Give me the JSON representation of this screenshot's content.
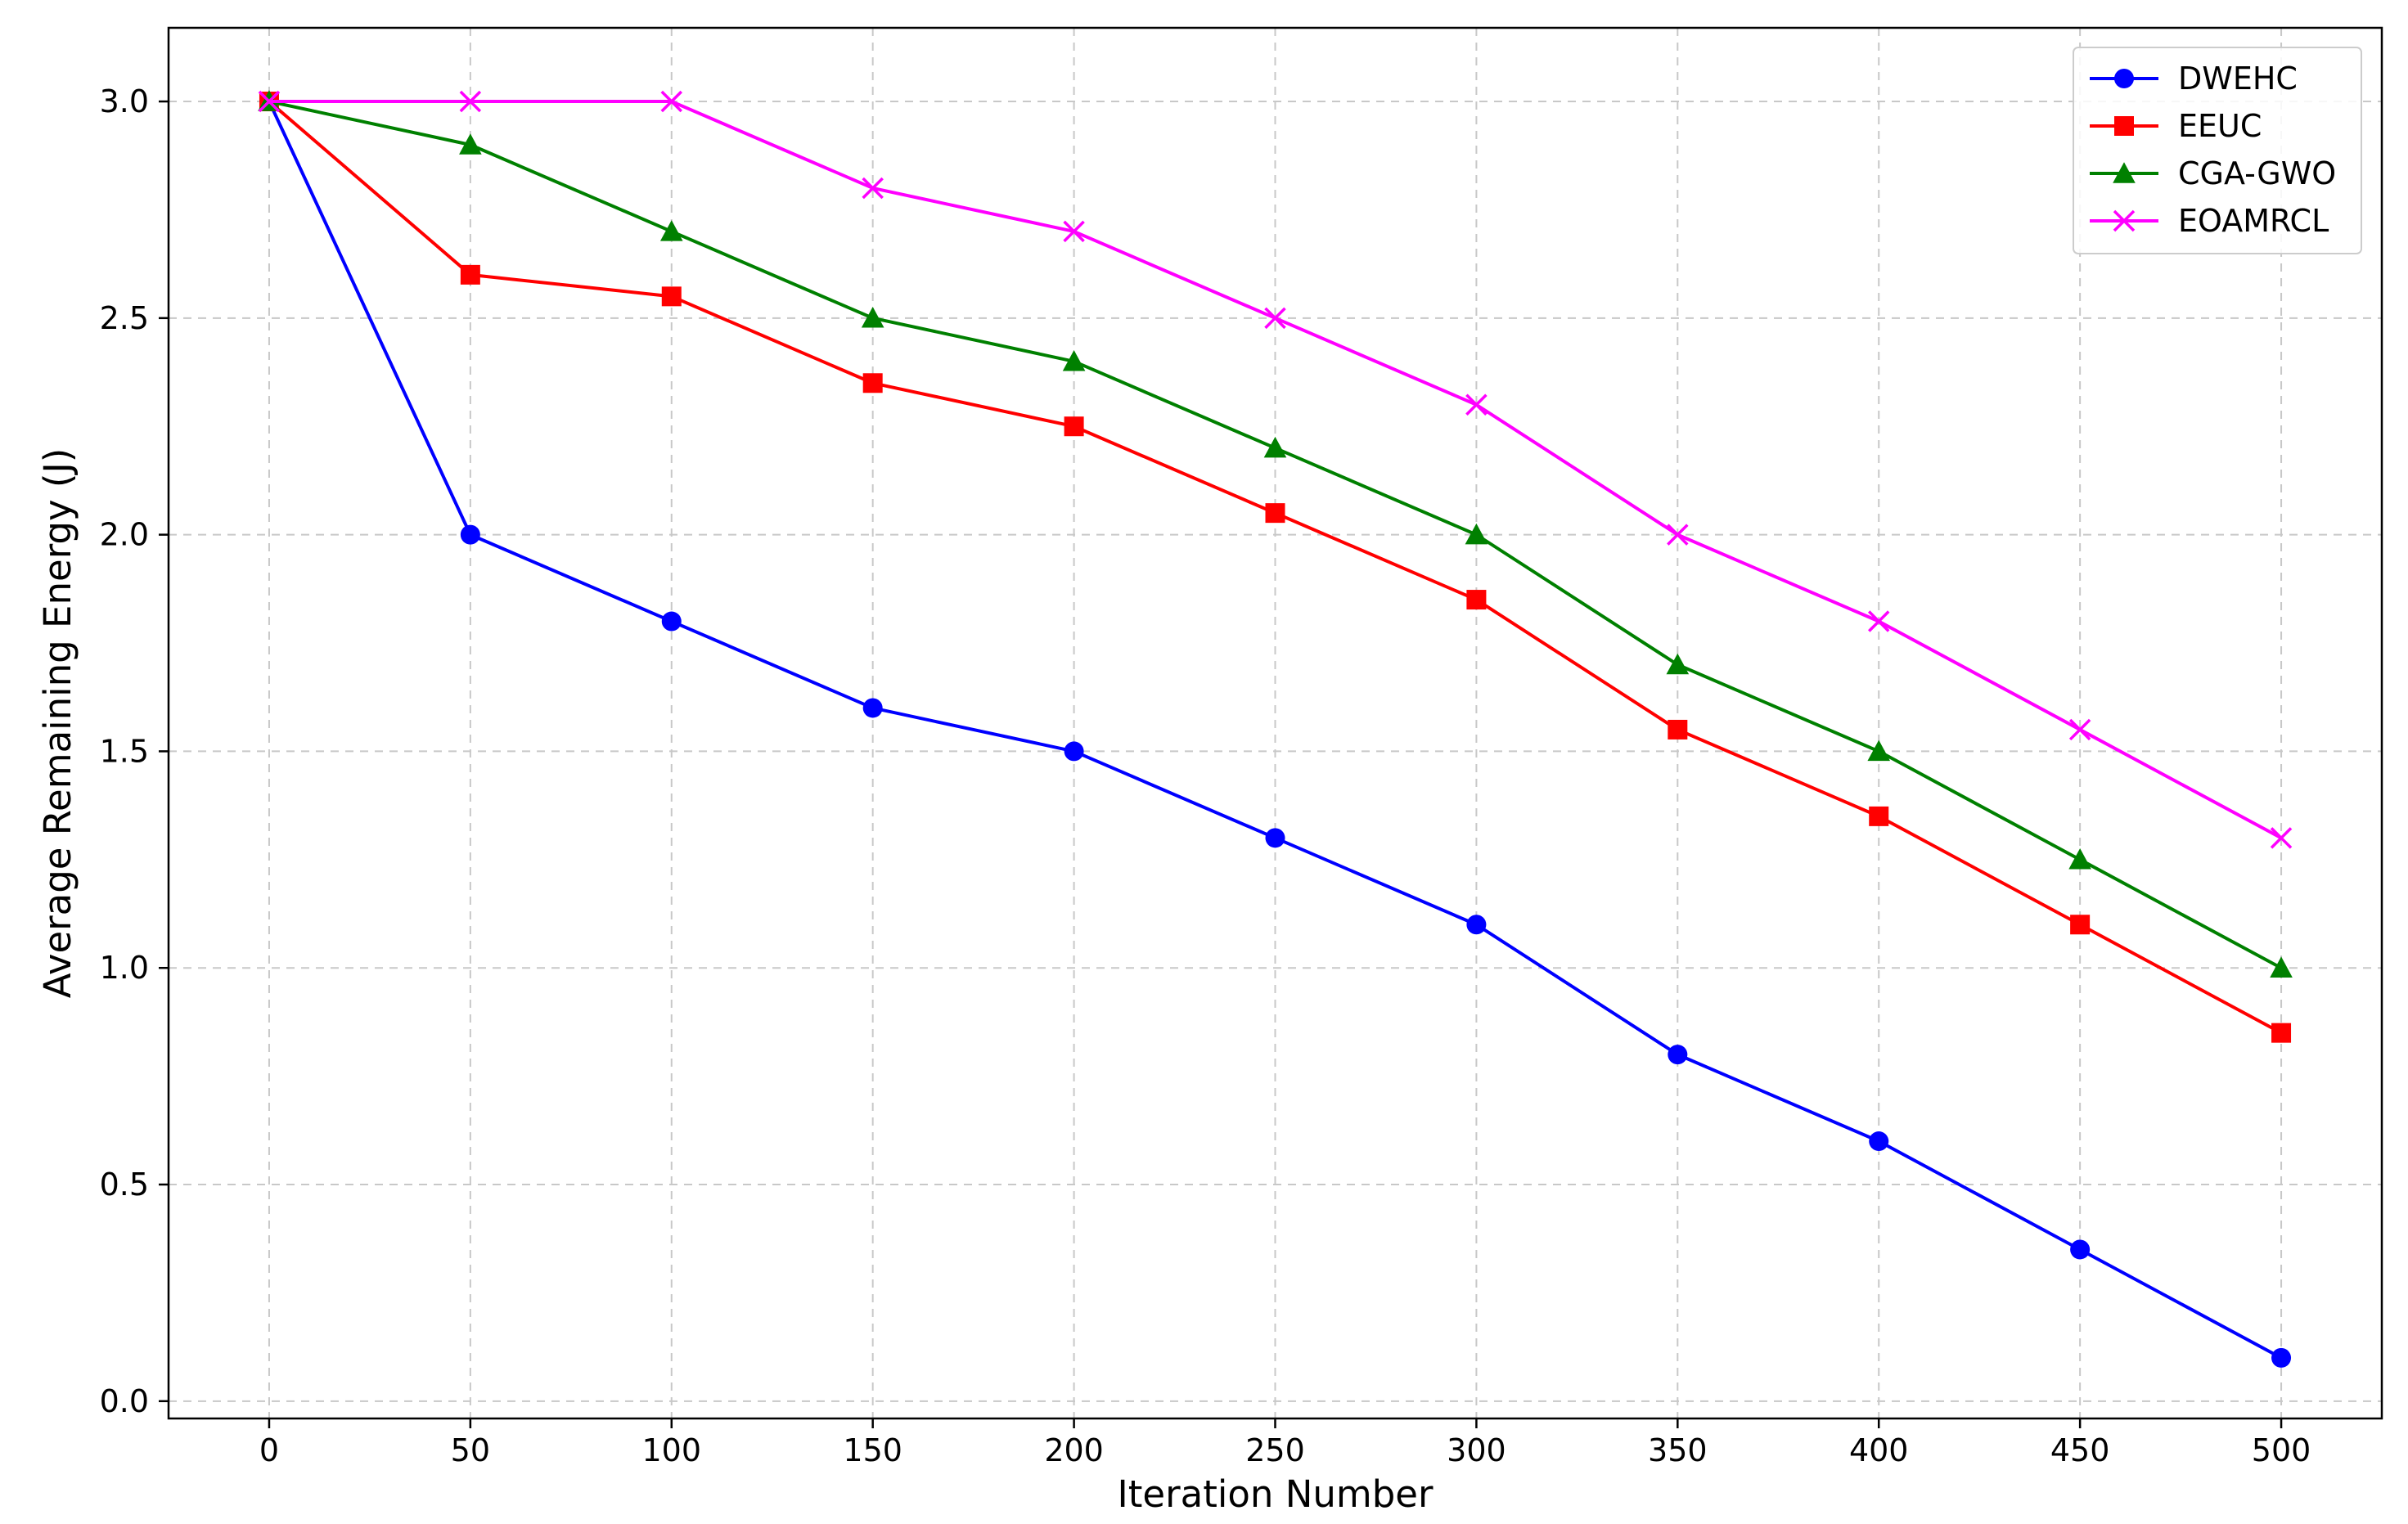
{
  "chart_data": {
    "type": "line",
    "title": "",
    "xlabel": "Iteration Number",
    "ylabel": "Average Remaining Energy (J)",
    "x": [
      0,
      50,
      100,
      150,
      200,
      250,
      300,
      350,
      400,
      450,
      500
    ],
    "xticks": [
      "0",
      "50",
      "100",
      "150",
      "200",
      "250",
      "300",
      "350",
      "400",
      "450",
      "500"
    ],
    "yticks": [
      "0.0",
      "0.5",
      "1.0",
      "1.5",
      "2.0",
      "2.5",
      "3.0"
    ],
    "xlim": [
      -25,
      525
    ],
    "ylim": [
      -0.04,
      3.17
    ],
    "grid": true,
    "legend_position": "top-right",
    "series": [
      {
        "name": "DWEHC",
        "color": "#0000ff",
        "marker": "circle",
        "values": [
          3.0,
          2.0,
          1.8,
          1.6,
          1.5,
          1.3,
          1.1,
          0.8,
          0.6,
          0.35,
          0.1
        ]
      },
      {
        "name": "EEUC",
        "color": "#ff0000",
        "marker": "square",
        "values": [
          3.0,
          2.6,
          2.55,
          2.35,
          2.25,
          2.05,
          1.85,
          1.55,
          1.35,
          1.1,
          0.85
        ]
      },
      {
        "name": "CGA-GWO",
        "color": "#008000",
        "marker": "triangle",
        "values": [
          3.0,
          2.9,
          2.7,
          2.5,
          2.4,
          2.2,
          2.0,
          1.7,
          1.5,
          1.25,
          1.0
        ]
      },
      {
        "name": "EOAMRCL",
        "color": "#ff00ff",
        "marker": "x",
        "values": [
          3.0,
          3.0,
          3.0,
          2.8,
          2.7,
          2.5,
          2.3,
          2.0,
          1.8,
          1.55,
          1.3
        ]
      }
    ]
  }
}
